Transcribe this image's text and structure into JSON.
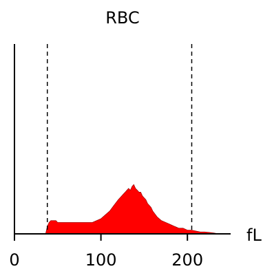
{
  "chart_data": {
    "type": "area",
    "title": "RBC",
    "xlabel": "fL",
    "ylabel": "",
    "xlim": [
      0,
      250
    ],
    "ylim": [
      0,
      1.0
    ],
    "grid": false,
    "xticks": [
      0,
      100,
      200
    ],
    "xtick_labels": [
      "0",
      "100",
      "200"
    ],
    "reference_lines": [
      38,
      205
    ],
    "fill_color": "#ff0000",
    "line_color": "#000000",
    "series": [
      {
        "x": [
          36,
          38,
          40,
          42,
          44,
          46,
          48,
          50,
          55,
          60,
          65,
          70,
          75,
          80,
          85,
          90,
          95,
          100,
          105,
          110,
          115,
          120,
          122,
          124,
          126,
          128,
          130,
          132,
          134,
          136,
          138,
          140,
          142,
          144,
          146,
          148,
          150,
          152,
          154,
          156,
          158,
          160,
          165,
          170,
          175,
          180,
          185,
          190,
          195,
          200,
          205,
          210,
          215,
          220,
          225,
          230,
          234,
          236
        ],
        "y": [
          0.0,
          0.04,
          0.06,
          0.07,
          0.07,
          0.07,
          0.07,
          0.06,
          0.06,
          0.06,
          0.06,
          0.06,
          0.06,
          0.06,
          0.06,
          0.06,
          0.07,
          0.08,
          0.1,
          0.12,
          0.15,
          0.18,
          0.19,
          0.2,
          0.21,
          0.22,
          0.23,
          0.24,
          0.23,
          0.25,
          0.26,
          0.24,
          0.23,
          0.22,
          0.22,
          0.2,
          0.19,
          0.18,
          0.16,
          0.15,
          0.14,
          0.12,
          0.09,
          0.07,
          0.06,
          0.05,
          0.04,
          0.03,
          0.03,
          0.02,
          0.02,
          0.015,
          0.01,
          0.01,
          0.008,
          0.005,
          0.002,
          0.0
        ]
      }
    ]
  }
}
